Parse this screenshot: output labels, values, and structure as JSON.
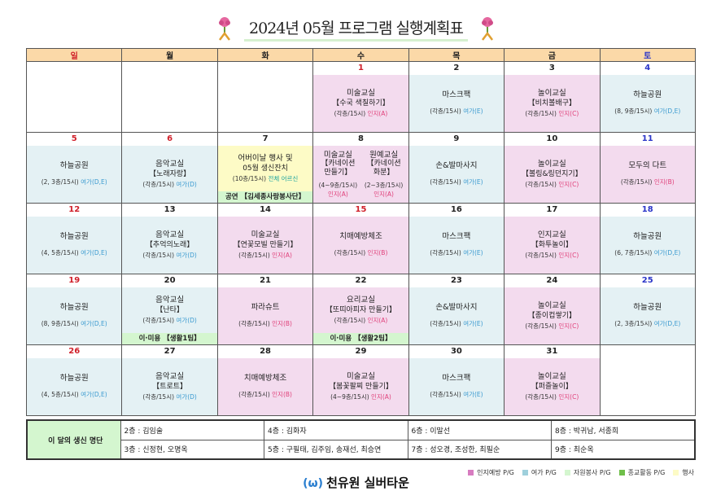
{
  "title": "2024년 05월 프로그램 실행계획표",
  "weekdays": [
    {
      "label": "일",
      "color": "#d0202a"
    },
    {
      "label": "월",
      "color": "#222"
    },
    {
      "label": "화",
      "color": "#222"
    },
    {
      "label": "수",
      "color": "#222"
    },
    {
      "label": "목",
      "color": "#222"
    },
    {
      "label": "금",
      "color": "#222"
    },
    {
      "label": "토",
      "color": "#2a35c8"
    }
  ],
  "weeks": [
    [
      {},
      {},
      {},
      {
        "date": "1",
        "date_color": "#d0202a",
        "bg": "pink",
        "title": "미술교실",
        "sub": "【수국 색칠하기】",
        "loc": "(각층/15시)",
        "tag": "인지(A)",
        "tag_color": "pink"
      },
      {
        "date": "2",
        "bg": "blue",
        "title": "마스크팩",
        "loc": "(각층/15시)",
        "tag": "여가(E)",
        "tag_color": "blue"
      },
      {
        "date": "3",
        "bg": "pink",
        "title": "놀이교실",
        "sub": "【비치볼배구】",
        "loc": "(각층/15시)",
        "tag": "인지(C)",
        "tag_color": "pink"
      },
      {
        "date": "4",
        "date_color": "#2a35c8",
        "bg": "blue",
        "title": "하늘공원",
        "loc": "(8, 9층/15시)",
        "tag": "여가(D,E)",
        "tag_color": "blue"
      }
    ],
    [
      {
        "date": "5",
        "date_color": "#d0202a",
        "bg": "blue",
        "title": "하늘공원",
        "loc": "(2, 3층/15시)",
        "tag": "여가(D,E)",
        "tag_color": "blue"
      },
      {
        "date": "6",
        "date_color": "#d0202a",
        "bg": "blue",
        "title": "음악교실",
        "sub": "【노래자랑】",
        "loc": "(각층/15시)",
        "tag": "여가(D)",
        "tag_color": "blue"
      },
      {
        "date": "7",
        "bg": "yellow",
        "title": "어버이날 행사 및",
        "sub": "05월 생신잔치",
        "loc": "(10층/15시)",
        "tag": "전체 어르신",
        "tag_color": "teal",
        "band": "공연 【김세종사랑봉사단】"
      },
      {
        "date": "8",
        "bg": "pink",
        "split": [
          {
            "title": "미술교실",
            "sub": "【카네이션 만들기】",
            "loc": "(4~9층/15시)",
            "tag": "인지(A)"
          },
          {
            "title": "원예교실",
            "sub": "【카네이션 화분】",
            "loc": "(2~3층/15시)",
            "tag": "인지(A)"
          }
        ]
      },
      {
        "date": "9",
        "bg": "blue",
        "title": "손&발마사지",
        "loc": "(각층/15시)",
        "tag": "여가(E)",
        "tag_color": "blue"
      },
      {
        "date": "10",
        "bg": "pink",
        "title": "놀이교실",
        "sub": "【볼링&링던지기】",
        "loc": "(각층/15시)",
        "tag": "인지(C)",
        "tag_color": "pink"
      },
      {
        "date": "11",
        "date_color": "#2a35c8",
        "bg": "pink",
        "title": "모두의 다트",
        "loc": "(각층/15시)",
        "tag": "인지(B)",
        "tag_color": "pink"
      }
    ],
    [
      {
        "date": "12",
        "date_color": "#d0202a",
        "bg": "blue",
        "title": "하늘공원",
        "loc": "(4, 5층/15시)",
        "tag": "여가(D,E)",
        "tag_color": "blue"
      },
      {
        "date": "13",
        "bg": "blue",
        "title": "음악교실",
        "sub": "【추억의노래】",
        "loc": "(각층/15시)",
        "tag": "여가(D)",
        "tag_color": "blue"
      },
      {
        "date": "14",
        "bg": "pink",
        "title": "미술교실",
        "sub": "【연꽃모빌 만들기】",
        "loc": "(각층/15시)",
        "tag": "인지(A)",
        "tag_color": "pink"
      },
      {
        "date": "15",
        "date_color": "#d0202a",
        "bg": "pink",
        "title": "치매예방체조",
        "loc": "(각층/15시)",
        "tag": "인지(B)",
        "tag_color": "pink"
      },
      {
        "date": "16",
        "bg": "blue",
        "title": "마스크팩",
        "loc": "(각층/15시)",
        "tag": "여가(E)",
        "tag_color": "blue"
      },
      {
        "date": "17",
        "bg": "pink",
        "title": "인지교실",
        "sub": "【화투놀이】",
        "loc": "(각층/15시)",
        "tag": "인지(C)",
        "tag_color": "pink"
      },
      {
        "date": "18",
        "date_color": "#2a35c8",
        "bg": "blue",
        "title": "하늘공원",
        "loc": "(6, 7층/15시)",
        "tag": "여가(D,E)",
        "tag_color": "blue"
      }
    ],
    [
      {
        "date": "19",
        "date_color": "#d0202a",
        "bg": "blue",
        "title": "하늘공원",
        "loc": "(8, 9층/15시)",
        "tag": "여가(D,E)",
        "tag_color": "blue"
      },
      {
        "date": "20",
        "bg": "blue",
        "title": "음악교실",
        "sub": "【난타】",
        "loc": "(각층/15시)",
        "tag": "여가(D)",
        "tag_color": "blue",
        "band": "이·미용 【생활1팀】"
      },
      {
        "date": "21",
        "bg": "pink",
        "title": "파라슈트",
        "loc": "(각층/15시)",
        "tag": "인지(B)",
        "tag_color": "pink"
      },
      {
        "date": "22",
        "bg": "pink",
        "title": "요리교실",
        "sub": "【또띠아피자 만들기】",
        "loc": "(각층/15시)",
        "tag": "인지(A)",
        "tag_color": "pink",
        "band": "이·미용 【생활2팀】"
      },
      {
        "date": "23",
        "bg": "blue",
        "title": "손&발마사지",
        "loc": "(각층/15시)",
        "tag": "여가(E)",
        "tag_color": "blue"
      },
      {
        "date": "24",
        "bg": "pink",
        "title": "놀이교실",
        "sub": "【종이컵쌓기】",
        "loc": "(각층/15시)",
        "tag": "인지(C)",
        "tag_color": "pink"
      },
      {
        "date": "25",
        "date_color": "#2a35c8",
        "bg": "blue",
        "title": "하늘공원",
        "loc": "(2, 3층/15시)",
        "tag": "여가(D,E)",
        "tag_color": "blue"
      }
    ],
    [
      {
        "date": "26",
        "date_color": "#d0202a",
        "bg": "blue",
        "title": "하늘공원",
        "loc": "(4, 5층/15시)",
        "tag": "여가(D,E)",
        "tag_color": "blue"
      },
      {
        "date": "27",
        "bg": "blue",
        "title": "음악교실",
        "sub": "【트로트】",
        "loc": "(각층/15시)",
        "tag": "여가(D)",
        "tag_color": "blue"
      },
      {
        "date": "28",
        "bg": "pink",
        "title": "치매예방체조",
        "loc": "(각층/15시)",
        "tag": "인지(B)",
        "tag_color": "pink"
      },
      {
        "date": "29",
        "bg": "pink",
        "title": "미술교실",
        "sub": "【봄꽃팔찌 만들기】",
        "loc": "(4~9층/15시)",
        "tag": "인지(A)",
        "tag_color": "pink"
      },
      {
        "date": "30",
        "bg": "blue",
        "title": "마스크팩",
        "loc": "(각층/15시)",
        "tag": "여가(E)",
        "tag_color": "blue"
      },
      {
        "date": "31",
        "bg": "pink",
        "title": "놀이교실",
        "sub": "【퍼즐놀이】",
        "loc": "(각층/15시)",
        "tag": "인지(C)",
        "tag_color": "pink"
      },
      {}
    ]
  ],
  "birthdays": {
    "label": "이 달의 생신 명단",
    "rows": [
      [
        "2층 : 김임술",
        "4층 : 김화자",
        "6층 : 이말선",
        "8층 : 박귀남, 서종희"
      ],
      [
        "3층 : 신정현, 오명옥",
        "5층 : 구필태, 김주임, 송재선, 최승연",
        "7층 : 성오경, 조성한, 최필순",
        "9층 : 최순옥"
      ]
    ]
  },
  "legend": [
    {
      "label": "인지예방 P/G",
      "color": "#d77cc0"
    },
    {
      "label": "여가 P/G",
      "color": "#9fd0dc"
    },
    {
      "label": "자원봉사 P/G",
      "color": "#d4f6cf"
    },
    {
      "label": "종교활동 P/G",
      "color": "#6fbf4a"
    },
    {
      "label": "행사",
      "color": "#fdfbc6"
    }
  ],
  "logo": {
    "name": "천유원 실버타운",
    "icon": "omega-logo-icon"
  }
}
